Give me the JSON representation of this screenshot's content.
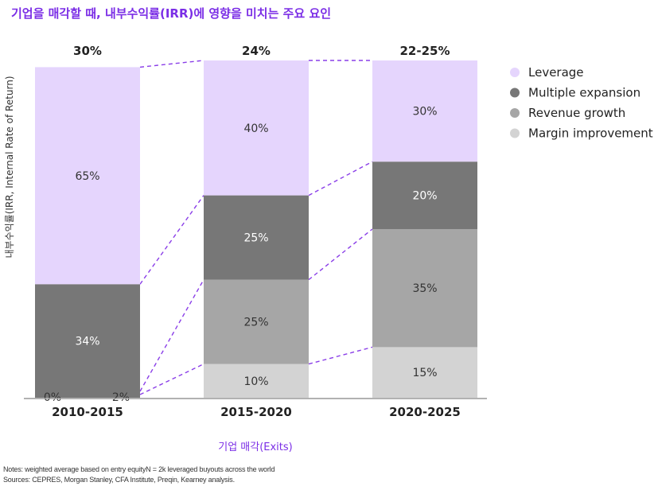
{
  "title": "기업을 매각할 때, 내부수익률(IRR)에 영향을 미치는 주요 요인",
  "notes": [
    "Notes: weighted average based on entry equityN = 2k leveraged buyouts across the world",
    "Sources: CEPRES, Morgan Stanley, CFA Institute, Preqin, Kearney analysis."
  ],
  "colors": {
    "accent": "#7b2ee6",
    "leverage": "#e5d5fd",
    "multiple_expansion": "#777777",
    "revenue_growth": "#a6a6a6",
    "margin_improvement": "#d3d3d3"
  },
  "chart_data": {
    "type": "bar",
    "stacked": true,
    "normalized": true,
    "categories": [
      "2010-2015",
      "2015-2020",
      "2020-2025"
    ],
    "totals": [
      "30%",
      "24%",
      "22-25%"
    ],
    "series": [
      {
        "name": "Margin improvement",
        "values": [
          0,
          10,
          15
        ],
        "labels": [
          "0%",
          "10%",
          "15%"
        ],
        "color": "#d3d3d3",
        "text_color": "#333333"
      },
      {
        "name": "Revenue growth",
        "values": [
          2,
          25,
          35
        ],
        "labels": [
          "2%",
          "25%",
          "35%"
        ],
        "color": "#a6a6a6",
        "text_color": "#333333"
      },
      {
        "name": "Multiple expansion",
        "values": [
          34,
          25,
          20
        ],
        "labels": [
          "34%",
          "25%",
          "20%"
        ],
        "color": "#777777",
        "text_color": "#ffffff"
      },
      {
        "name": "Leverage",
        "values": [
          65,
          40,
          30
        ],
        "labels": [
          "65%",
          "40%",
          "30%"
        ],
        "color": "#e5d5fd",
        "text_color": "#333333"
      }
    ],
    "legend_order": [
      "Leverage",
      "Multiple expansion",
      "Revenue growth",
      "Margin improvement"
    ],
    "legend_position": "top-right",
    "xlabel": "기업 매각(Exits)",
    "ylabel": "내부수익률(IRR, Internal Rate of Return)",
    "connectors": "dashed purple lines linking segment boundaries between adjacent bars",
    "grid": false
  }
}
